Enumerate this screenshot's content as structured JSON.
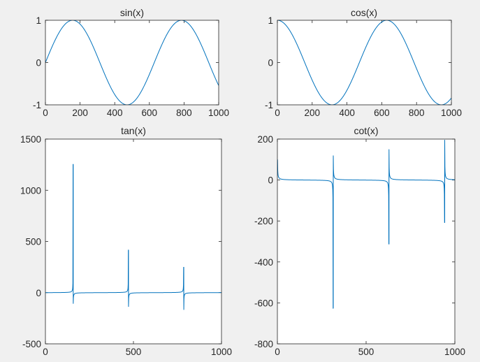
{
  "figure": {
    "background": "#f0f0f0",
    "axes_background": "#ffffff",
    "line_color": "#0072bd"
  },
  "chart_data": [
    {
      "type": "line",
      "title": "sin(x)",
      "function": "sin",
      "x_samples": 1000,
      "x_step": 0.01,
      "xlim": [
        0,
        1000
      ],
      "ylim": [
        -1,
        1
      ],
      "xticks": [
        0,
        200,
        400,
        600,
        800,
        1000
      ],
      "yticks": [
        -1,
        0,
        1
      ],
      "xticklabels": [
        "0",
        "200",
        "400",
        "600",
        "800",
        "1000"
      ],
      "yticklabels": [
        "-1",
        "0",
        "1"
      ]
    },
    {
      "type": "line",
      "title": "cos(x)",
      "function": "cos",
      "x_samples": 1000,
      "x_step": 0.01,
      "xlim": [
        0,
        1000
      ],
      "ylim": [
        -1,
        1
      ],
      "xticks": [
        0,
        200,
        400,
        600,
        800,
        1000
      ],
      "yticks": [
        -1,
        0,
        1
      ],
      "xticklabels": [
        "0",
        "200",
        "400",
        "600",
        "800",
        "1000"
      ],
      "yticklabels": [
        "-1",
        "0",
        "1"
      ]
    },
    {
      "type": "line",
      "title": "tan(x)",
      "function": "tan",
      "x_samples": 1000,
      "x_step": 0.01,
      "xlim": [
        0,
        1000
      ],
      "ylim": [
        -500,
        1500
      ],
      "xticks": [
        0,
        500,
        1000
      ],
      "yticks": [
        -500,
        0,
        500,
        1000,
        1500
      ],
      "xticklabels": [
        "0",
        "500",
        "1000"
      ],
      "yticklabels": [
        "-500",
        "0",
        "500",
        "1000",
        "1500"
      ],
      "spikes": [
        {
          "x": 158,
          "y_top": 1256,
          "y_bottom": -108
        },
        {
          "x": 472,
          "y_top": 418,
          "y_bottom": -138
        },
        {
          "x": 786,
          "y_top": 251,
          "y_bottom": -168
        }
      ]
    },
    {
      "type": "line",
      "title": "cot(x)",
      "function": "cot",
      "x_samples": 1000,
      "x_step": 0.01,
      "xlim": [
        0,
        1000
      ],
      "ylim": [
        -800,
        200
      ],
      "xticks": [
        0,
        500,
        1000
      ],
      "yticks": [
        -800,
        -600,
        -400,
        -200,
        0,
        200
      ],
      "xticklabels": [
        "0",
        "500",
        "1000"
      ],
      "yticklabels": [
        "-800",
        "-600",
        "-400",
        "-200",
        "0",
        "200"
      ],
      "spikes": [
        {
          "x": 315,
          "y_top": 120,
          "y_bottom": -627
        },
        {
          "x": 629,
          "y_top": 150,
          "y_bottom": -314
        },
        {
          "x": 943,
          "y_top": 196,
          "y_bottom": -209
        }
      ]
    }
  ]
}
